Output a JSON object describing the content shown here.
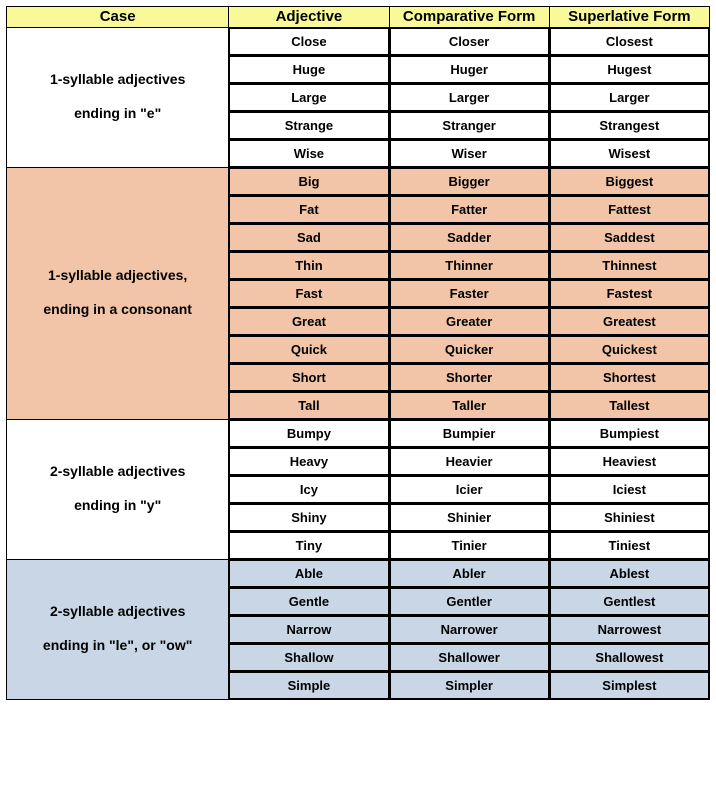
{
  "headers": {
    "case": "Case",
    "adjective": "Adjective",
    "comparative": "Comparative Form",
    "superlative": "Superlative Form"
  },
  "column_widths": {
    "case": 222,
    "adjective": 160,
    "comparative": 160,
    "superlative": 160
  },
  "colors": {
    "header_bg": "#f9f99a",
    "section_bg": {
      "0": "#ffffff",
      "1": "#f2c5a8",
      "2": "#ffffff",
      "3": "#c8d6e6"
    },
    "border": "#000000"
  },
  "sections": [
    {
      "case_lines": [
        "1-syllable adjectives",
        "ending in \"e\""
      ],
      "bg": "bg-white",
      "rows": [
        {
          "adj": "Close",
          "comp": "Closer",
          "sup": "Closest"
        },
        {
          "adj": "Huge",
          "comp": "Huger",
          "sup": "Hugest"
        },
        {
          "adj": "Large",
          "comp": "Larger",
          "sup": "Larger"
        },
        {
          "adj": "Strange",
          "comp": "Stranger",
          "sup": "Strangest"
        },
        {
          "adj": "Wise",
          "comp": "Wiser",
          "sup": "Wisest"
        }
      ]
    },
    {
      "case_lines": [
        "1-syllable adjectives,",
        "ending in a consonant"
      ],
      "bg": "bg-peach",
      "rows": [
        {
          "adj": "Big",
          "comp": "Bigger",
          "sup": "Biggest"
        },
        {
          "adj": "Fat",
          "comp": "Fatter",
          "sup": "Fattest"
        },
        {
          "adj": "Sad",
          "comp": "Sadder",
          "sup": "Saddest"
        },
        {
          "adj": "Thin",
          "comp": "Thinner",
          "sup": "Thinnest"
        },
        {
          "adj": "Fast",
          "comp": "Faster",
          "sup": "Fastest"
        },
        {
          "adj": "Great",
          "comp": "Greater",
          "sup": "Greatest"
        },
        {
          "adj": "Quick",
          "comp": "Quicker",
          "sup": "Quickest"
        },
        {
          "adj": "Short",
          "comp": "Shorter",
          "sup": "Shortest"
        },
        {
          "adj": "Tall",
          "comp": "Taller",
          "sup": "Tallest"
        }
      ]
    },
    {
      "case_lines": [
        "2-syllable adjectives",
        "ending in \"y\""
      ],
      "bg": "bg-white",
      "rows": [
        {
          "adj": "Bumpy",
          "comp": "Bumpier",
          "sup": "Bumpiest"
        },
        {
          "adj": "Heavy",
          "comp": "Heavier",
          "sup": "Heaviest"
        },
        {
          "adj": "Icy",
          "comp": "Icier",
          "sup": "Iciest"
        },
        {
          "adj": "Shiny",
          "comp": "Shinier",
          "sup": "Shiniest"
        },
        {
          "adj": "Tiny",
          "comp": "Tinier",
          "sup": "Tiniest"
        }
      ]
    },
    {
      "case_lines": [
        "2-syllable adjectives",
        "ending in \"le\", or \"ow\""
      ],
      "bg": "bg-blue",
      "rows": [
        {
          "adj": "Able",
          "comp": "Abler",
          "sup": "Ablest"
        },
        {
          "adj": "Gentle",
          "comp": "Gentler",
          "sup": "Gentlest"
        },
        {
          "adj": "Narrow",
          "comp": "Narrower",
          "sup": "Narrowest"
        },
        {
          "adj": "Shallow",
          "comp": "Shallower",
          "sup": "Shallowest"
        },
        {
          "adj": "Simple",
          "comp": "Simpler",
          "sup": "Simplest"
        }
      ]
    }
  ]
}
